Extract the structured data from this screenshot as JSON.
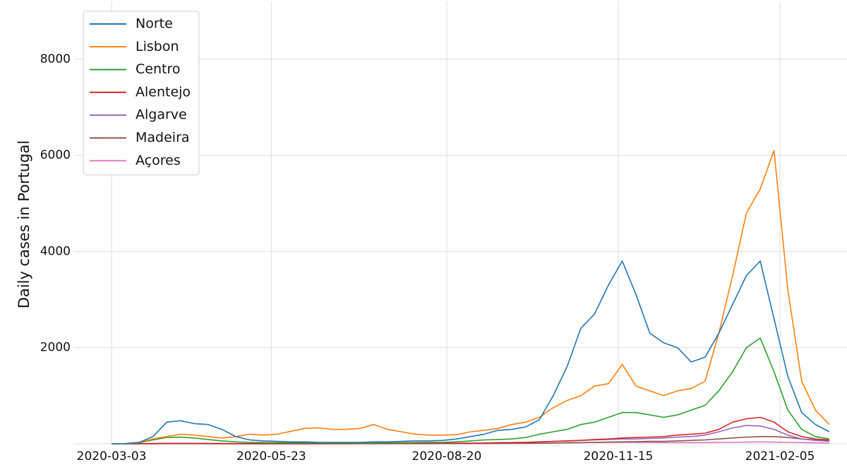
{
  "chart_data": {
    "type": "line",
    "y_label": "Daily cases in Portugal",
    "x": [
      "2020-03-03",
      "2020-03-10",
      "2020-03-17",
      "2020-03-24",
      "2020-03-31",
      "2020-04-07",
      "2020-04-14",
      "2020-04-21",
      "2020-04-28",
      "2020-05-05",
      "2020-05-12",
      "2020-05-19",
      "2020-05-26",
      "2020-06-02",
      "2020-06-09",
      "2020-06-16",
      "2020-06-23",
      "2020-06-30",
      "2020-07-07",
      "2020-07-14",
      "2020-07-21",
      "2020-07-28",
      "2020-08-04",
      "2020-08-11",
      "2020-08-18",
      "2020-08-25",
      "2020-09-01",
      "2020-09-08",
      "2020-09-15",
      "2020-09-22",
      "2020-09-29",
      "2020-10-06",
      "2020-10-13",
      "2020-10-20",
      "2020-10-27",
      "2020-11-03",
      "2020-11-10",
      "2020-11-17",
      "2020-11-24",
      "2020-12-01",
      "2020-12-08",
      "2020-12-15",
      "2020-12-22",
      "2020-12-29",
      "2021-01-05",
      "2021-01-12",
      "2021-01-19",
      "2021-01-26",
      "2021-02-02",
      "2021-02-09",
      "2021-02-16",
      "2021-02-23",
      "2021-03-02"
    ],
    "series": [
      {
        "name": "Norte",
        "color": "#1f77b4",
        "values": [
          0,
          2,
          30,
          150,
          450,
          480,
          420,
          400,
          300,
          150,
          80,
          60,
          50,
          40,
          40,
          30,
          30,
          30,
          30,
          40,
          40,
          50,
          60,
          60,
          70,
          100,
          150,
          200,
          280,
          300,
          350,
          500,
          1000,
          1600,
          2400,
          2700,
          3300,
          3800,
          3100,
          2300,
          2100,
          2000,
          1700,
          1800,
          2300,
          2900,
          3500,
          3800,
          2600,
          1400,
          650,
          400,
          250
        ]
      },
      {
        "name": "Lisbon",
        "color": "#ff7f0e",
        "values": [
          0,
          5,
          30,
          100,
          150,
          200,
          180,
          150,
          120,
          150,
          200,
          180,
          200,
          260,
          320,
          330,
          300,
          300,
          320,
          400,
          300,
          250,
          200,
          180,
          180,
          190,
          250,
          280,
          320,
          400,
          450,
          550,
          750,
          900,
          1000,
          1200,
          1250,
          1650,
          1200,
          1100,
          1000,
          1100,
          1150,
          1300,
          2300,
          3500,
          4800,
          5300,
          6100,
          3200,
          1300,
          700,
          400
        ]
      },
      {
        "name": "Centro",
        "color": "#2ca02c",
        "values": [
          0,
          2,
          20,
          80,
          130,
          140,
          120,
          90,
          60,
          40,
          30,
          25,
          20,
          20,
          20,
          15,
          15,
          15,
          15,
          15,
          20,
          20,
          25,
          30,
          30,
          40,
          60,
          80,
          90,
          100,
          130,
          200,
          250,
          300,
          400,
          450,
          550,
          650,
          650,
          600,
          550,
          600,
          700,
          800,
          1100,
          1500,
          2000,
          2200,
          1500,
          700,
          300,
          150,
          100
        ]
      },
      {
        "name": "Alentejo",
        "color": "#d62728",
        "values": [
          0,
          0,
          2,
          5,
          8,
          8,
          6,
          5,
          4,
          3,
          3,
          3,
          3,
          3,
          3,
          3,
          4,
          4,
          5,
          5,
          5,
          6,
          6,
          8,
          10,
          10,
          12,
          15,
          20,
          25,
          30,
          40,
          50,
          60,
          70,
          90,
          100,
          120,
          130,
          140,
          150,
          180,
          200,
          220,
          300,
          450,
          520,
          550,
          450,
          250,
          150,
          100,
          80
        ]
      },
      {
        "name": "Algarve",
        "color": "#9467bd",
        "values": [
          0,
          0,
          2,
          5,
          10,
          10,
          8,
          6,
          5,
          5,
          5,
          5,
          5,
          6,
          8,
          10,
          10,
          12,
          15,
          15,
          15,
          15,
          15,
          12,
          12,
          12,
          15,
          15,
          20,
          25,
          30,
          40,
          50,
          60,
          70,
          80,
          90,
          100,
          100,
          110,
          120,
          140,
          150,
          180,
          250,
          330,
          380,
          370,
          300,
          180,
          100,
          70,
          50
        ]
      },
      {
        "name": "Madeira",
        "color": "#8c564b",
        "values": [
          0,
          0,
          1,
          2,
          3,
          3,
          3,
          2,
          2,
          1,
          1,
          1,
          1,
          1,
          1,
          1,
          2,
          2,
          3,
          3,
          4,
          4,
          5,
          5,
          5,
          5,
          5,
          6,
          8,
          10,
          10,
          12,
          15,
          20,
          25,
          30,
          35,
          40,
          45,
          50,
          50,
          60,
          70,
          80,
          100,
          120,
          140,
          150,
          150,
          130,
          100,
          80,
          60
        ]
      },
      {
        "name": "Açores",
        "color": "#e377c2",
        "values": [
          0,
          0,
          1,
          2,
          5,
          8,
          8,
          5,
          3,
          2,
          1,
          1,
          1,
          1,
          1,
          1,
          2,
          2,
          3,
          3,
          3,
          3,
          3,
          3,
          4,
          5,
          5,
          5,
          6,
          8,
          10,
          12,
          15,
          20,
          25,
          30,
          30,
          30,
          30,
          28,
          25,
          25,
          25,
          25,
          30,
          30,
          35,
          40,
          35,
          30,
          25,
          20,
          15
        ]
      }
    ],
    "xlim": [
      "2020-02-13",
      "2021-03-11"
    ],
    "xticks": [
      "2020-03-03",
      "2020-05-23",
      "2020-08-20",
      "2020-11-15",
      "2021-02-05"
    ],
    "ylim": [
      0,
      9200
    ],
    "yticks": [
      2000,
      4000,
      6000,
      8000
    ],
    "grid": true,
    "legend": "upper left"
  }
}
